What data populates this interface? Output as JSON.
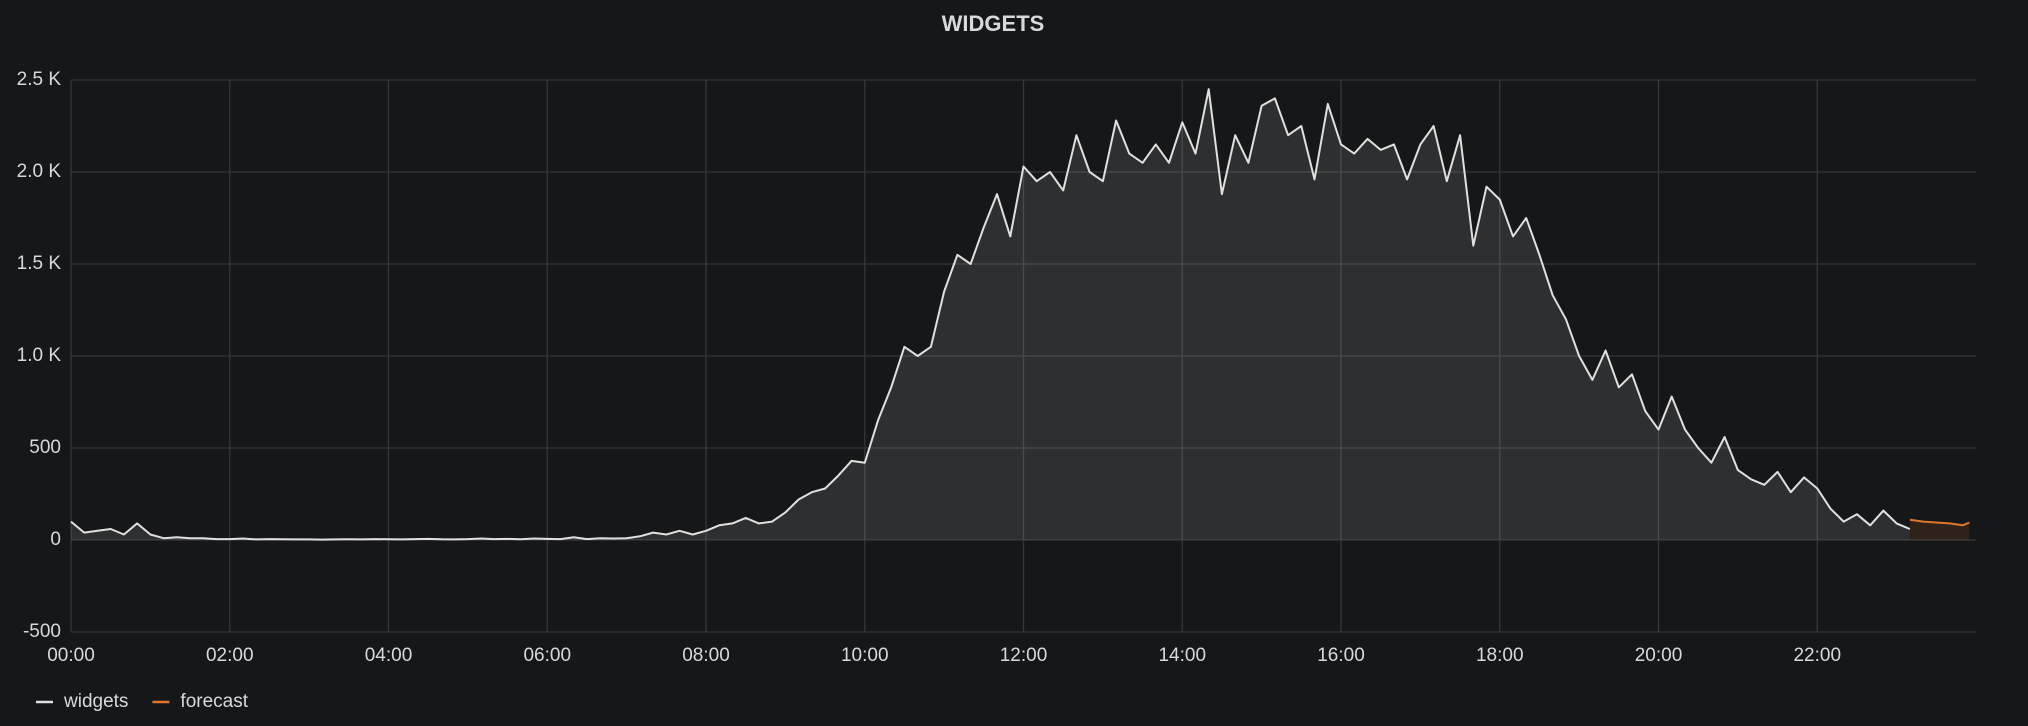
{
  "chart_data": {
    "type": "line",
    "title": "WIDGETS",
    "xlim": [
      "00:00",
      "24:00"
    ],
    "xticks": [
      "00:00",
      "02:00",
      "04:00",
      "06:00",
      "08:00",
      "10:00",
      "12:00",
      "14:00",
      "16:00",
      "18:00",
      "20:00",
      "22:00"
    ],
    "ylim": [
      -500,
      2500
    ],
    "yticks": [
      -500,
      0,
      500,
      {
        "value": 1000,
        "label": "1.0 K"
      },
      {
        "value": 1500,
        "label": "1.5 K"
      },
      {
        "value": 2000,
        "label": "2.0 K"
      },
      {
        "value": 2500,
        "label": "2.5 K"
      }
    ],
    "grid": true,
    "legend": "bottom-left",
    "fill_area": true,
    "series": [
      {
        "name": "widgets",
        "color": "#e0e0e0",
        "x": [
          "00:00",
          "00:10",
          "00:20",
          "00:30",
          "00:40",
          "00:50",
          "01:00",
          "01:10",
          "01:20",
          "01:30",
          "01:40",
          "01:50",
          "02:00",
          "02:10",
          "02:20",
          "02:30",
          "02:40",
          "02:50",
          "03:00",
          "03:10",
          "03:20",
          "03:30",
          "03:40",
          "03:50",
          "04:00",
          "04:10",
          "04:20",
          "04:30",
          "04:40",
          "04:50",
          "05:00",
          "05:10",
          "05:20",
          "05:30",
          "05:40",
          "05:50",
          "06:00",
          "06:10",
          "06:20",
          "06:30",
          "06:40",
          "06:50",
          "07:00",
          "07:10",
          "07:20",
          "07:30",
          "07:40",
          "07:50",
          "08:00",
          "08:10",
          "08:20",
          "08:30",
          "08:40",
          "08:50",
          "09:00",
          "09:10",
          "09:20",
          "09:30",
          "09:40",
          "09:50",
          "10:00",
          "10:10",
          "10:20",
          "10:30",
          "10:40",
          "10:50",
          "11:00",
          "11:10",
          "11:20",
          "11:30",
          "11:40",
          "11:50",
          "12:00",
          "12:10",
          "12:20",
          "12:30",
          "12:40",
          "12:50",
          "13:00",
          "13:10",
          "13:20",
          "13:30",
          "13:40",
          "13:50",
          "14:00",
          "14:10",
          "14:20",
          "14:30",
          "14:40",
          "14:50",
          "15:00",
          "15:10",
          "15:20",
          "15:30",
          "15:40",
          "15:50",
          "16:00",
          "16:10",
          "16:20",
          "16:30",
          "16:40",
          "16:50",
          "17:00",
          "17:10",
          "17:20",
          "17:30",
          "17:40",
          "17:50",
          "18:00",
          "18:10",
          "18:20",
          "18:30",
          "18:40",
          "18:50",
          "19:00",
          "19:10",
          "19:20",
          "19:30",
          "19:40",
          "19:50",
          "20:00",
          "20:10",
          "20:20",
          "20:30",
          "20:40",
          "20:50",
          "21:00",
          "21:10",
          "21:20",
          "21:30",
          "21:40",
          "21:50",
          "22:00",
          "22:10",
          "22:20",
          "22:30",
          "22:40",
          "22:50",
          "23:00",
          "23:10"
        ],
        "values": [
          100,
          40,
          50,
          60,
          30,
          90,
          30,
          10,
          15,
          10,
          10,
          5,
          5,
          8,
          3,
          5,
          4,
          3,
          3,
          2,
          3,
          4,
          3,
          5,
          4,
          3,
          5,
          6,
          4,
          3,
          5,
          8,
          5,
          6,
          4,
          8,
          6,
          5,
          15,
          5,
          10,
          8,
          10,
          20,
          40,
          30,
          50,
          30,
          50,
          80,
          90,
          120,
          90,
          100,
          150,
          220,
          260,
          280,
          350,
          430,
          420,
          650,
          830,
          1050,
          1000,
          1050,
          1350,
          1550,
          1500,
          1700,
          1880,
          1650,
          2030,
          1950,
          2000,
          1900,
          2200,
          2000,
          1950,
          2280,
          2100,
          2050,
          2150,
          2050,
          2270,
          2100,
          2450,
          1880,
          2200,
          2050,
          2360,
          2400,
          2200,
          2250,
          1960,
          2370,
          2150,
          2100,
          2180,
          2120,
          2150,
          1960,
          2150,
          2250,
          1950,
          2200,
          1600,
          1920,
          1850,
          1650,
          1750,
          1550,
          1330,
          1200,
          1000,
          870,
          1030,
          830,
          900,
          700,
          600,
          780,
          600,
          500,
          420,
          560,
          380,
          330,
          300,
          370,
          260,
          340,
          280,
          170,
          100,
          140,
          80,
          160,
          90,
          60
        ]
      },
      {
        "name": "forecast",
        "color": "#e0752d",
        "x": [
          "23:10",
          "23:20",
          "23:30",
          "23:40",
          "23:50",
          "23:55"
        ],
        "values": [
          110,
          100,
          95,
          90,
          80,
          95
        ]
      }
    ]
  }
}
